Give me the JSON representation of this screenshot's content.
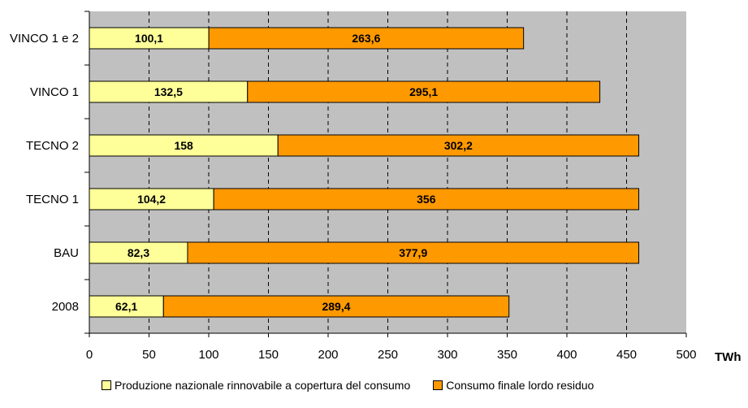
{
  "chart_data": {
    "type": "bar",
    "orientation": "horizontal",
    "stacked": true,
    "categories": [
      "VINCO 1 e 2",
      "VINCO 1",
      "TECNO 2",
      "TECNO 1",
      "BAU",
      "2008"
    ],
    "series": [
      {
        "name": "Produzione nazionale rinnovabile a copertura del consumo",
        "color": "#ffff99",
        "values": [
          100.1,
          132.5,
          158,
          104.2,
          82.3,
          62.1
        ],
        "labels": [
          "100,1",
          "132,5",
          "158",
          "104,2",
          "82,3",
          "62,1"
        ]
      },
      {
        "name": "Consumo finale lordo residuo",
        "color": "#ff9900",
        "values": [
          263.6,
          295.1,
          302.2,
          356,
          377.9,
          289.4
        ],
        "labels": [
          "263,6",
          "295,1",
          "302,2",
          "356",
          "377,9",
          "289,4"
        ]
      }
    ],
    "xlim": [
      0,
      500
    ],
    "xticks": [
      0,
      50,
      100,
      150,
      200,
      250,
      300,
      350,
      400,
      450,
      500
    ],
    "xunit": "TWh",
    "plot_background": "#c0c0c0",
    "grid": "vertical dashed",
    "legend_position": "bottom"
  }
}
